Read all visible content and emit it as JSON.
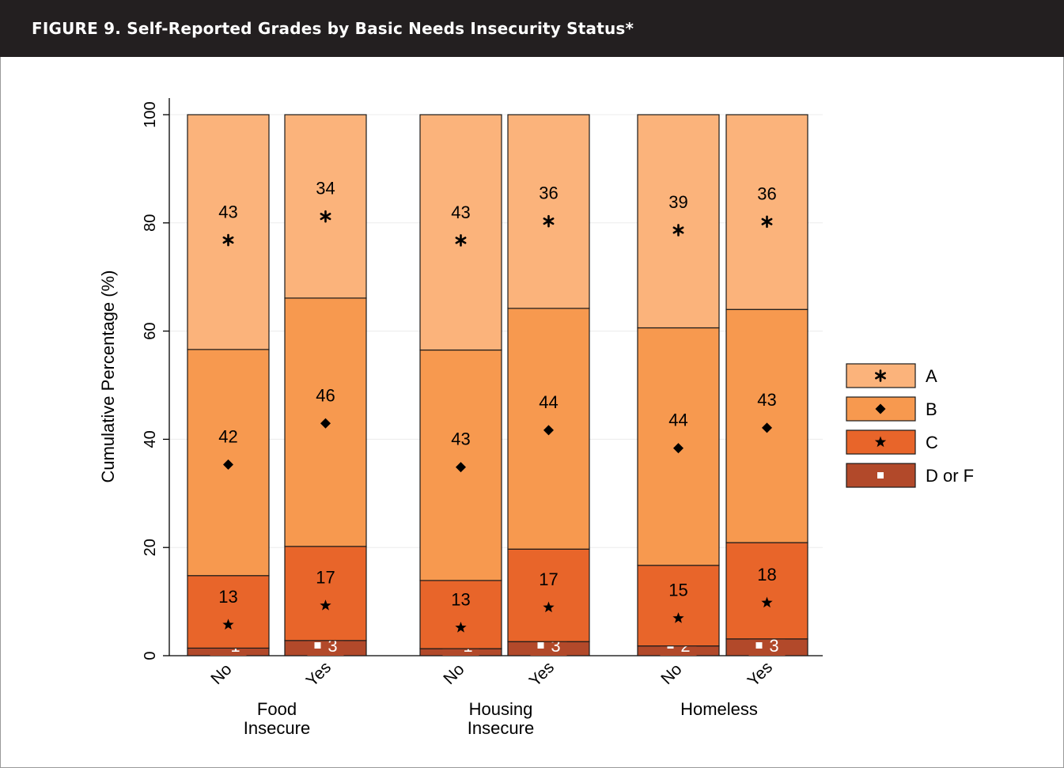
{
  "figure": {
    "title": "FIGURE 9. Self-Reported Grades by Basic Needs Insecurity Status*"
  },
  "colors": {
    "A": "#fbb37b",
    "B": "#f7994f",
    "C": "#e8652a",
    "D or F": "#b2492a",
    "header_bg": "#231f20"
  },
  "chart_data": {
    "type": "bar",
    "stacked": true,
    "ylabel": "Cumulative Percentage (%)",
    "ylim": [
      0,
      100
    ],
    "yticks": [
      0,
      20,
      40,
      60,
      80,
      100
    ],
    "grid": true,
    "legend_position": "right",
    "groups": [
      {
        "name": "Food\nInsecure",
        "categories": [
          "No",
          "Yes"
        ]
      },
      {
        "name": "Housing\nInsecure",
        "categories": [
          "No",
          "Yes"
        ]
      },
      {
        "name": "Homeless",
        "categories": [
          "No",
          "Yes"
        ]
      }
    ],
    "series": [
      {
        "name": "D or F",
        "marker": "square-icon",
        "values": [
          1,
          3,
          1,
          3,
          2,
          3
        ]
      },
      {
        "name": "C",
        "marker": "star-icon",
        "values": [
          13,
          17,
          13,
          17,
          15,
          18
        ]
      },
      {
        "name": "B",
        "marker": "diamond-icon",
        "values": [
          42,
          46,
          43,
          44,
          44,
          43
        ]
      },
      {
        "name": "A",
        "marker": "asterisk-icon",
        "values": [
          43,
          34,
          43,
          36,
          39,
          36
        ]
      }
    ],
    "cumulative_boundaries": [
      [
        1.4,
        14.8,
        56.6,
        100
      ],
      [
        2.8,
        20.2,
        66.1,
        100
      ],
      [
        1.3,
        13.9,
        56.5,
        100
      ],
      [
        2.6,
        19.7,
        64.2,
        100
      ],
      [
        1.8,
        16.7,
        60.6,
        100
      ],
      [
        3.1,
        20.9,
        64.0,
        100
      ]
    ],
    "legend": [
      "A",
      "B",
      "C",
      "D or F"
    ]
  }
}
